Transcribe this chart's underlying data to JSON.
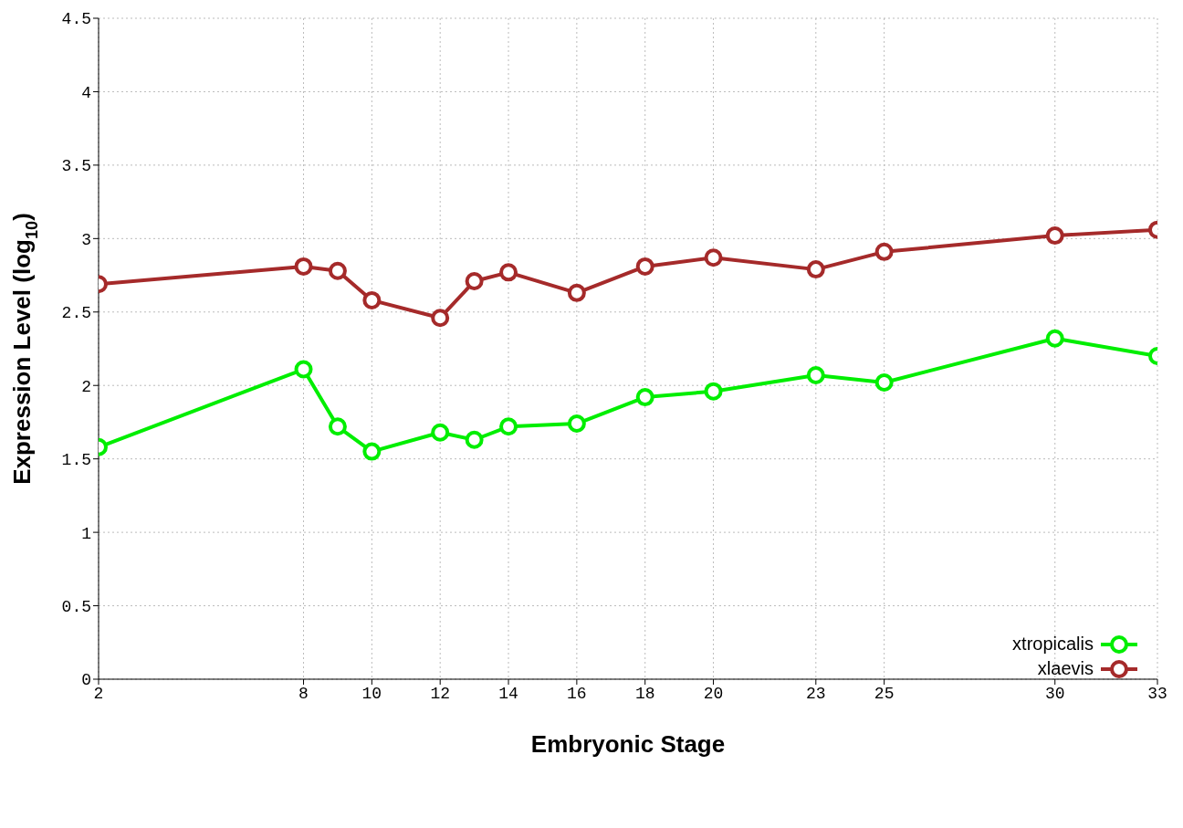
{
  "chart_data": {
    "type": "line",
    "xlabel": "Embryonic Stage",
    "ylabel": "Expression Level (log$_{10}$)",
    "x": [
      2,
      8,
      9,
      10,
      12,
      13,
      14,
      16,
      18,
      20,
      23,
      25,
      30,
      33
    ],
    "series": [
      {
        "name": "xtropicalis",
        "color": "#00ee00",
        "values": [
          1.58,
          2.11,
          1.72,
          1.55,
          1.68,
          1.63,
          1.72,
          1.74,
          1.92,
          1.96,
          2.07,
          2.02,
          2.32,
          2.2
        ]
      },
      {
        "name": "xlaevis",
        "color": "#a52a2a",
        "values": [
          2.69,
          2.81,
          2.78,
          2.58,
          2.46,
          2.71,
          2.77,
          2.63,
          2.81,
          2.87,
          2.79,
          2.91,
          3.02,
          3.06
        ]
      }
    ],
    "xlim": [
      2,
      33
    ],
    "xticks": [
      2,
      8,
      10,
      12,
      14,
      16,
      18,
      20,
      23,
      25,
      30,
      33
    ],
    "ylim": [
      0,
      4.5
    ],
    "yticks": [
      0,
      0.5,
      1,
      1.5,
      2,
      2.5,
      3,
      3.5,
      4,
      4.5
    ],
    "grid": true,
    "legend": "bottom right",
    "marker": "circle",
    "line_style": "solid"
  }
}
